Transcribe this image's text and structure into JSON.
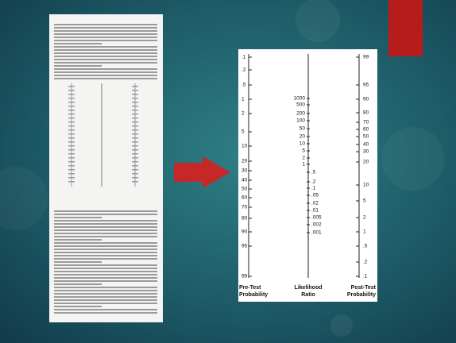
{
  "nomogram": {
    "left_scale": [
      ".1",
      ".2",
      ".5",
      "1",
      "2",
      "5",
      "10",
      "20",
      "30",
      "40",
      "50",
      "60",
      "70",
      "80",
      "90",
      "95",
      "99"
    ],
    "middle_scale": [
      "1000",
      "500",
      "200",
      "100",
      "50",
      "20",
      "10",
      "5",
      "2",
      "1",
      ".5",
      ".2",
      ".1",
      ".05",
      ".02",
      ".01",
      ".005",
      ".002",
      ".001"
    ],
    "right_scale": [
      "99",
      "95",
      "90",
      "80",
      "70",
      "60",
      "50",
      "40",
      "30",
      "20",
      "10",
      "5",
      "2",
      "1",
      ".5",
      ".2",
      ".1"
    ],
    "left_label": [
      "Pre-Test",
      "Probability"
    ],
    "middle_label": [
      "Likelihood",
      "Ratio"
    ],
    "right_label": [
      "Post-Test",
      "Probability"
    ]
  }
}
